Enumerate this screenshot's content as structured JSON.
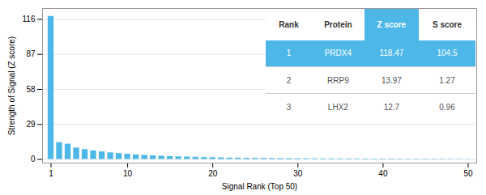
{
  "chart_data": {
    "type": "bar",
    "xlabel": "Signal Rank (Top 50)",
    "ylabel": "Strength of Signal (Z score)",
    "x": [
      1,
      2,
      3,
      4,
      5,
      6,
      7,
      8,
      9,
      10,
      11,
      12,
      13,
      14,
      15,
      16,
      17,
      18,
      19,
      20,
      21,
      22,
      23,
      24,
      25,
      26,
      27,
      28,
      29,
      30,
      31,
      32,
      33,
      34,
      35,
      36,
      37,
      38,
      39,
      40,
      41,
      42,
      43,
      44,
      45,
      46,
      47,
      48,
      49,
      50
    ],
    "values": [
      118.47,
      13.97,
      12.7,
      9.5,
      8.2,
      7.1,
      6.3,
      5.5,
      4.9,
      4.3,
      3.8,
      3.4,
      3.0,
      2.7,
      2.4,
      2.2,
      2.0,
      1.8,
      1.6,
      1.5,
      1.3,
      1.2,
      1.1,
      1.0,
      0.9,
      0.85,
      0.8,
      0.75,
      0.7,
      0.65,
      0.6,
      0.58,
      0.55,
      0.52,
      0.5,
      0.48,
      0.46,
      0.44,
      0.42,
      0.4,
      0.38,
      0.36,
      0.34,
      0.32,
      0.3,
      0.28,
      0.26,
      0.24,
      0.22,
      0.2
    ],
    "color": "#4db8e8",
    "xlim": [
      0,
      51
    ],
    "xticks": [
      1,
      10,
      20,
      30,
      40,
      50
    ],
    "ylim": [
      -3,
      125
    ],
    "yticks": [
      0,
      29,
      58,
      87,
      116
    ],
    "grid": true,
    "table": {
      "columns": [
        "Rank",
        "Protein",
        "Z score",
        "S score"
      ],
      "rows": [
        [
          "1",
          "PRDX4",
          "118.47",
          "104.5"
        ],
        [
          "2",
          "RRP9",
          "13.97",
          "1.27"
        ],
        [
          "3",
          "LHX2",
          "12.7",
          "0.96"
        ]
      ]
    }
  }
}
